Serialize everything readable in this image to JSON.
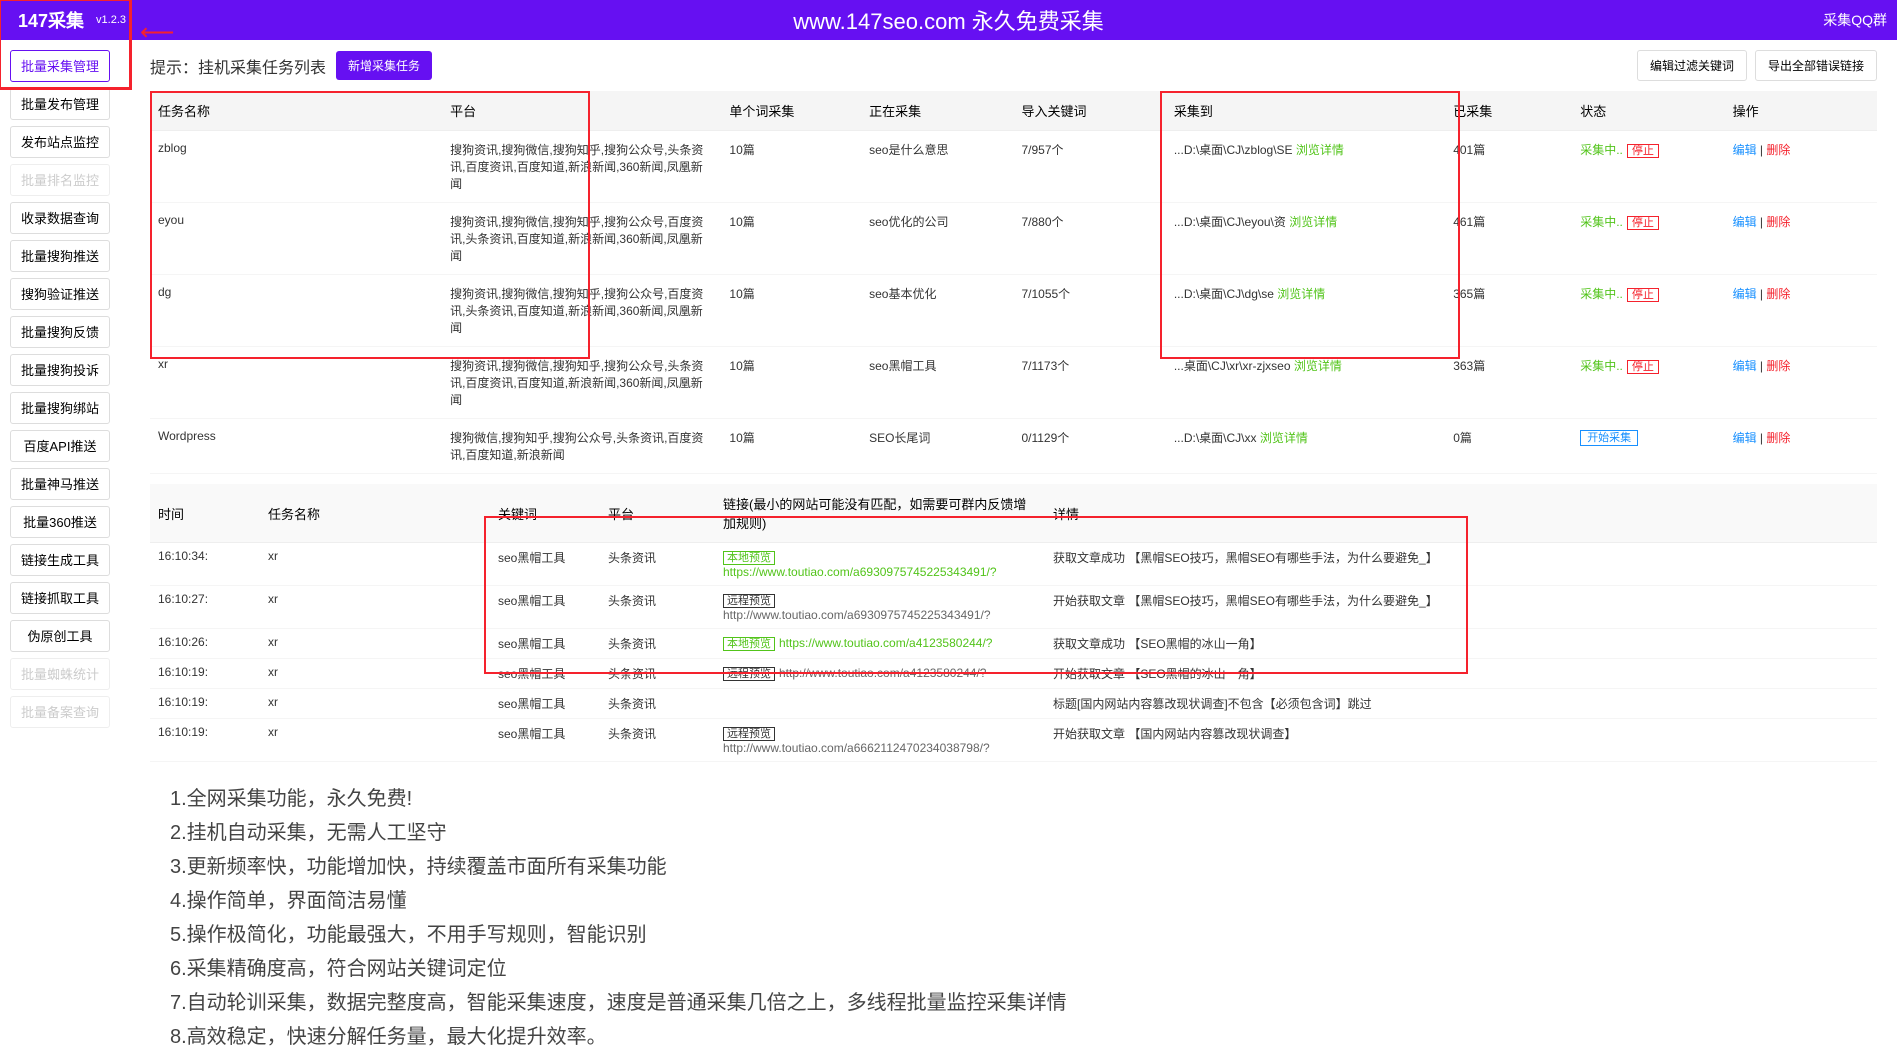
{
  "header": {
    "logo_text": "147采集",
    "version": "v1.2.3",
    "title": "www.147seo.com   永久免费采集",
    "qq_group": "采集QQ群"
  },
  "sidebar": {
    "items": [
      {
        "label": "批量采集管理",
        "cls": "active"
      },
      {
        "label": "批量发布管理",
        "cls": ""
      },
      {
        "label": "发布站点监控",
        "cls": ""
      },
      {
        "label": "批量排名监控",
        "cls": "disabled"
      },
      {
        "label": "收录数据查询",
        "cls": ""
      },
      {
        "label": "批量搜狗推送",
        "cls": ""
      },
      {
        "label": "搜狗验证推送",
        "cls": ""
      },
      {
        "label": "批量搜狗反馈",
        "cls": ""
      },
      {
        "label": "批量搜狗投诉",
        "cls": ""
      },
      {
        "label": "批量搜狗绑站",
        "cls": ""
      },
      {
        "label": "百度API推送",
        "cls": ""
      },
      {
        "label": "批量神马推送",
        "cls": ""
      },
      {
        "label": "批量360推送",
        "cls": ""
      },
      {
        "label": "链接生成工具",
        "cls": ""
      },
      {
        "label": "链接抓取工具",
        "cls": ""
      },
      {
        "label": "伪原创工具",
        "cls": ""
      },
      {
        "label": "批量蜘蛛统计",
        "cls": "disabled"
      },
      {
        "label": "批量备案查询",
        "cls": "disabled"
      }
    ]
  },
  "content_header": {
    "hint": "提示：挂机采集任务列表",
    "new_btn": "新增采集任务",
    "filter_btn": "编辑过滤关键词",
    "export_btn": "导出全部错误链接"
  },
  "task_table": {
    "headers": [
      "任务名称",
      "平台",
      "单个词采集",
      "正在采集",
      "导入关键词",
      "采集到",
      "已采集",
      "状态",
      "操作"
    ],
    "rows": [
      {
        "name": "zblog",
        "platform": "搜狗资讯,搜狗微信,搜狗知乎,搜狗公众号,头条资讯,百度资讯,百度知道,新浪新闻,360新闻,凤凰新闻",
        "single": "10篇",
        "collecting": "seo是什么意思",
        "keyword": "7/957个",
        "target": "...D:\\桌面\\CJ\\zblog\\SE",
        "browse": "浏览详情",
        "collected": "401篇",
        "status": "采集中..",
        "stop": "停止",
        "edit": "编辑",
        "del": "删除"
      },
      {
        "name": "eyou",
        "platform": "搜狗资讯,搜狗微信,搜狗知乎,搜狗公众号,百度资讯,头条资讯,百度知道,新浪新闻,360新闻,凤凰新闻",
        "single": "10篇",
        "collecting": "seo优化的公司",
        "keyword": "7/880个",
        "target": "...D:\\桌面\\CJ\\eyou\\资",
        "browse": "浏览详情",
        "collected": "461篇",
        "status": "采集中..",
        "stop": "停止",
        "edit": "编辑",
        "del": "删除"
      },
      {
        "name": "dg",
        "platform": "搜狗资讯,搜狗微信,搜狗知乎,搜狗公众号,百度资讯,头条资讯,百度知道,新浪新闻,360新闻,凤凰新闻",
        "single": "10篇",
        "collecting": "seo基本优化",
        "keyword": "7/1055个",
        "target": "...D:\\桌面\\CJ\\dg\\se",
        "browse": "浏览详情",
        "collected": "365篇",
        "status": "采集中..",
        "stop": "停止",
        "edit": "编辑",
        "del": "删除"
      },
      {
        "name": "xr",
        "platform": "搜狗资讯,搜狗微信,搜狗知乎,搜狗公众号,头条资讯,百度资讯,百度知道,新浪新闻,360新闻,凤凰新闻",
        "single": "10篇",
        "collecting": "seo黑帽工具",
        "keyword": "7/1173个",
        "target": "...桌面\\CJ\\xr\\xr-zjxseo",
        "browse": "浏览详情",
        "collected": "363篇",
        "status": "采集中..",
        "stop": "停止",
        "edit": "编辑",
        "del": "删除"
      },
      {
        "name": "Wordpress",
        "platform": "搜狗微信,搜狗知乎,搜狗公众号,头条资讯,百度资讯,百度知道,新浪新闻",
        "single": "10篇",
        "collecting": "SEO长尾词",
        "keyword": "0/1129个",
        "target": "...D:\\桌面\\CJ\\xx",
        "browse": "浏览详情",
        "collected": "0篇",
        "status_start": "开始采集",
        "edit": "编辑",
        "del": "删除"
      }
    ]
  },
  "log_table": {
    "headers": [
      "时间",
      "任务名称",
      "关键词",
      "平台",
      "链接(最小的网站可能没有匹配，如需要可群内反馈增加规则)",
      "详情"
    ],
    "rows": [
      {
        "time": "16:10:34:",
        "task": "xr",
        "kw": "seo黑帽工具",
        "pf": "头条资讯",
        "tag": "本地预览",
        "tag_cls": "tag-local",
        "url": "https://www.toutiao.com/a6930975745225343491/?",
        "url_cls": "url-green",
        "detail": "获取文章成功 【黑帽SEO技巧，黑帽SEO有哪些手法，为什么要避免_】"
      },
      {
        "time": "16:10:27:",
        "task": "xr",
        "kw": "seo黑帽工具",
        "pf": "头条资讯",
        "tag": "远程预览",
        "tag_cls": "tag-remote",
        "url": "http://www.toutiao.com/a6930975745225343491/?",
        "url_cls": "url-gray",
        "detail": "开始获取文章 【黑帽SEO技巧，黑帽SEO有哪些手法，为什么要避免_】"
      },
      {
        "time": "16:10:26:",
        "task": "xr",
        "kw": "seo黑帽工具",
        "pf": "头条资讯",
        "tag": "本地预览",
        "tag_cls": "tag-local",
        "url": "https://www.toutiao.com/a4123580244/?",
        "url_cls": "url-green",
        "detail": "获取文章成功 【SEO黑帽的冰山一角】"
      },
      {
        "time": "16:10:19:",
        "task": "xr",
        "kw": "seo黑帽工具",
        "pf": "头条资讯",
        "tag": "远程预览",
        "tag_cls": "tag-remote",
        "url": "http://www.toutiao.com/a4123580244/?",
        "url_cls": "url-gray",
        "detail": "开始获取文章 【SEO黑帽的冰山一角】"
      },
      {
        "time": "16:10:19:",
        "task": "xr",
        "kw": "seo黑帽工具",
        "pf": "头条资讯",
        "tag": "",
        "tag_cls": "",
        "url": "",
        "url_cls": "",
        "detail": "标题[国内网站内容篡改现状调查]不包含【必须包含词】跳过"
      },
      {
        "time": "16:10:19:",
        "task": "xr",
        "kw": "seo黑帽工具",
        "pf": "头条资讯",
        "tag": "远程预览",
        "tag_cls": "tag-remote",
        "url": "http://www.toutiao.com/a6662112470234038798/?",
        "url_cls": "url-gray",
        "detail": "开始获取文章 【国内网站内容篡改现状调查】"
      }
    ]
  },
  "features": [
    "1.全网采集功能，永久免费!",
    "2.挂机自动采集，无需人工坚守",
    "3.更新频率快，功能增加快，持续覆盖市面所有采集功能",
    "4.操作简单，界面简洁易懂",
    "5.操作极简化，功能最强大，不用手写规则，智能识别",
    "6.采集精确度高，符合网站关键词定位",
    "7.自动轮训采集，数据完整度高，智能采集速度，速度是普通采集几倍之上，多线程批量监控采集详情",
    "8.高效稳定，快速分解任务量，最大化提升效率。"
  ]
}
